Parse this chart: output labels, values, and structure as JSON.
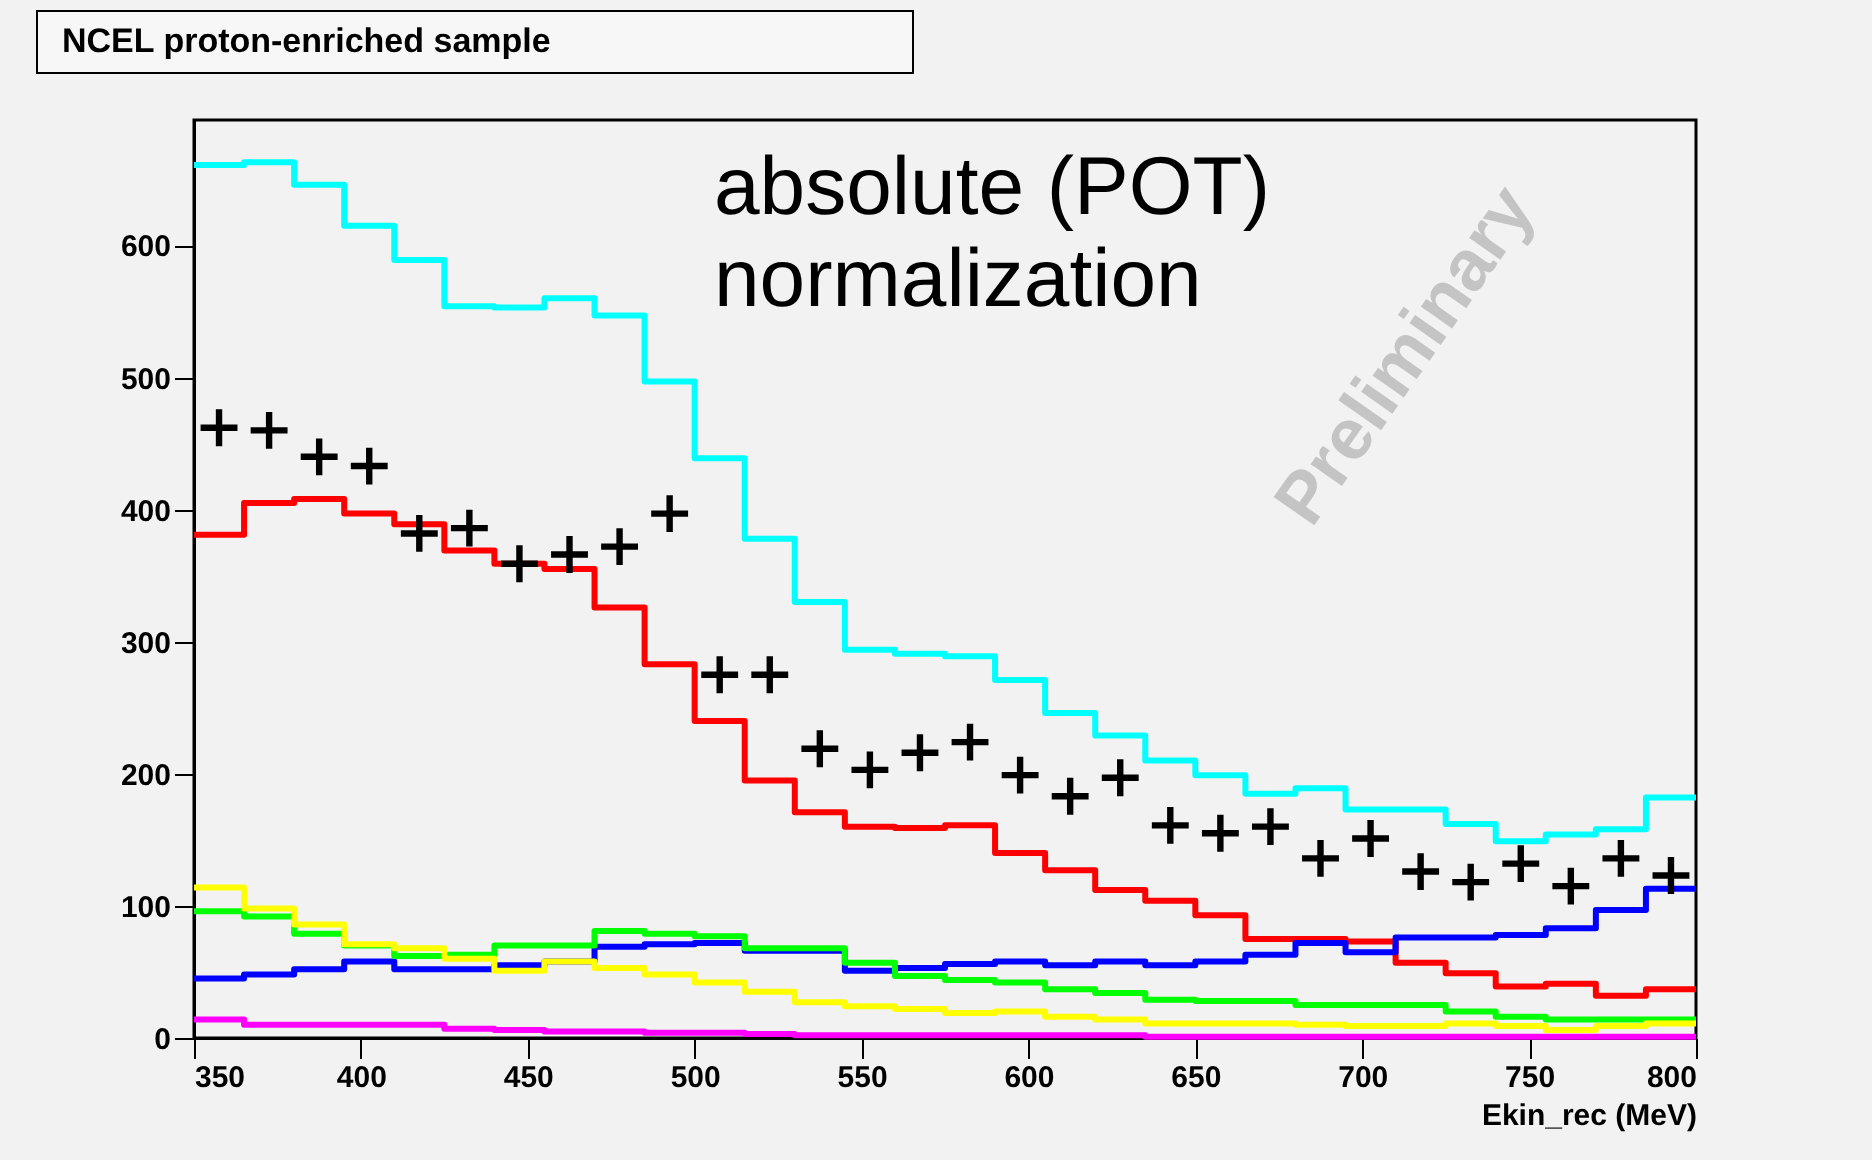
{
  "chart_data": {
    "type": "histogram",
    "title": "NCEL proton-enriched sample",
    "xlabel": "Ekin_rec (MeV)",
    "bins": [
      350,
      365,
      380,
      395,
      410,
      425,
      440,
      455,
      470,
      485,
      500,
      515,
      530,
      545,
      560,
      575,
      590,
      605,
      620,
      635,
      650,
      665,
      680,
      695,
      710,
      725,
      740,
      755,
      770,
      785,
      800
    ],
    "series": [
      {
        "color": "#00ffff",
        "values": [
          661,
          663,
          646,
          615,
          589,
          554,
          553,
          560,
          547,
          497,
          439,
          378,
          330,
          294,
          291,
          289,
          271,
          246,
          229,
          210,
          199,
          185,
          189,
          173,
          173,
          162,
          149,
          154,
          158,
          182
        ]
      },
      {
        "color": "#ff0000",
        "values": [
          381,
          405,
          408,
          397,
          389,
          369,
          359,
          355,
          326,
          283,
          240,
          195,
          171,
          160,
          159,
          161,
          140,
          127,
          112,
          104,
          93,
          75,
          75,
          73,
          57,
          49,
          39,
          41,
          32,
          37
        ]
      },
      {
        "color": "#0000ff",
        "values": [
          45,
          48,
          52,
          58,
          52,
          52,
          55,
          58,
          69,
          71,
          72,
          66,
          66,
          51,
          53,
          56,
          58,
          55,
          58,
          55,
          58,
          63,
          72,
          65,
          76,
          76,
          78,
          83,
          97,
          113
        ]
      },
      {
        "color": "#00ff00",
        "values": [
          96,
          92,
          79,
          70,
          62,
          63,
          70,
          70,
          81,
          79,
          77,
          68,
          68,
          57,
          47,
          44,
          42,
          37,
          34,
          29,
          28,
          28,
          25,
          25,
          25,
          20,
          16,
          14,
          14,
          14
        ]
      },
      {
        "color": "#ffff00",
        "values": [
          114,
          98,
          86,
          71,
          68,
          60,
          51,
          58,
          53,
          48,
          42,
          35,
          27,
          24,
          22,
          19,
          20,
          16,
          14,
          11,
          11,
          11,
          10,
          9,
          9,
          11,
          9,
          6,
          9,
          11
        ]
      },
      {
        "color": "#ff00ff",
        "values": [
          14,
          10,
          10,
          10,
          10,
          7,
          6,
          5,
          5,
          4,
          4,
          3,
          2,
          2,
          2,
          2,
          2,
          2,
          2,
          1,
          1,
          1,
          1,
          1,
          1,
          1,
          1,
          1,
          1,
          1
        ]
      },
      {
        "type": "scatter",
        "color": "#000000",
        "marker": "cross",
        "x": [
          357.5,
          372.5,
          387.5,
          402.5,
          417.5,
          432.5,
          447.5,
          462.5,
          477.5,
          492.5,
          507.5,
          522.5,
          537.5,
          552.5,
          567.5,
          582.5,
          597.5,
          612.5,
          627.5,
          642.5,
          657.5,
          672.5,
          687.5,
          702.5,
          717.5,
          732.5,
          747.5,
          762.5,
          777.5,
          792.5
        ],
        "values": [
          462,
          460,
          440,
          433,
          382,
          386,
          359,
          366,
          372,
          397,
          275,
          275,
          219,
          203,
          216,
          224,
          199,
          183,
          197,
          161,
          155,
          160,
          136,
          151,
          126,
          118,
          132,
          115,
          136,
          123
        ]
      }
    ],
    "xlim": [
      350,
      800
    ],
    "xticks": [
      350,
      400,
      450,
      500,
      550,
      600,
      650,
      700,
      750,
      800
    ],
    "ylim": [
      0,
      695
    ],
    "yticks": [
      0,
      100,
      200,
      300,
      400,
      500,
      600
    ],
    "annotations": [
      "absolute (POT)\nnormalization",
      "Preliminary"
    ]
  }
}
